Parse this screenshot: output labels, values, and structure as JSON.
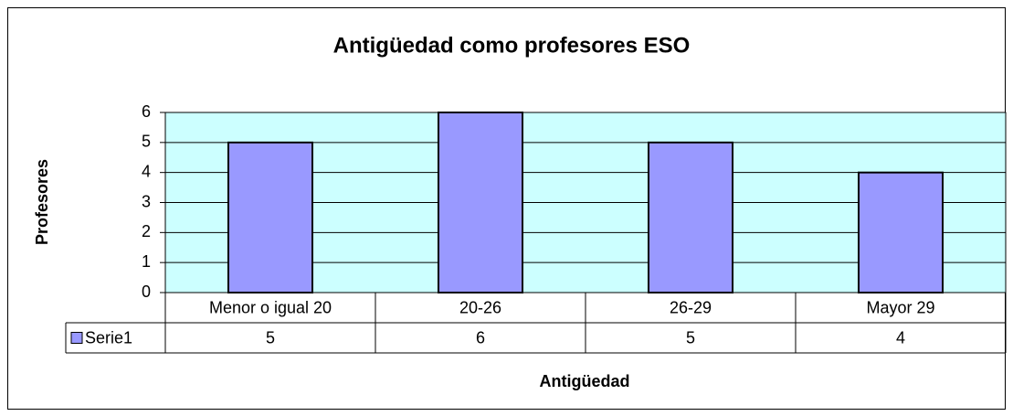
{
  "chart_data": {
    "type": "bar",
    "title": "Antigüedad como profesores ESO",
    "xlabel": "Antigüedad",
    "ylabel": "Profesores",
    "categories": [
      "Menor o igual 20",
      "20-26",
      "26-29",
      "Mayor 29"
    ],
    "series": [
      {
        "name": "Serie1",
        "color": "#9999ff",
        "values": [
          5,
          6,
          5,
          4
        ]
      }
    ],
    "ylim": [
      0,
      6
    ],
    "yticks": [
      0,
      1,
      2,
      3,
      4,
      5,
      6
    ],
    "grid": true,
    "plot_background": "#ccffff"
  }
}
